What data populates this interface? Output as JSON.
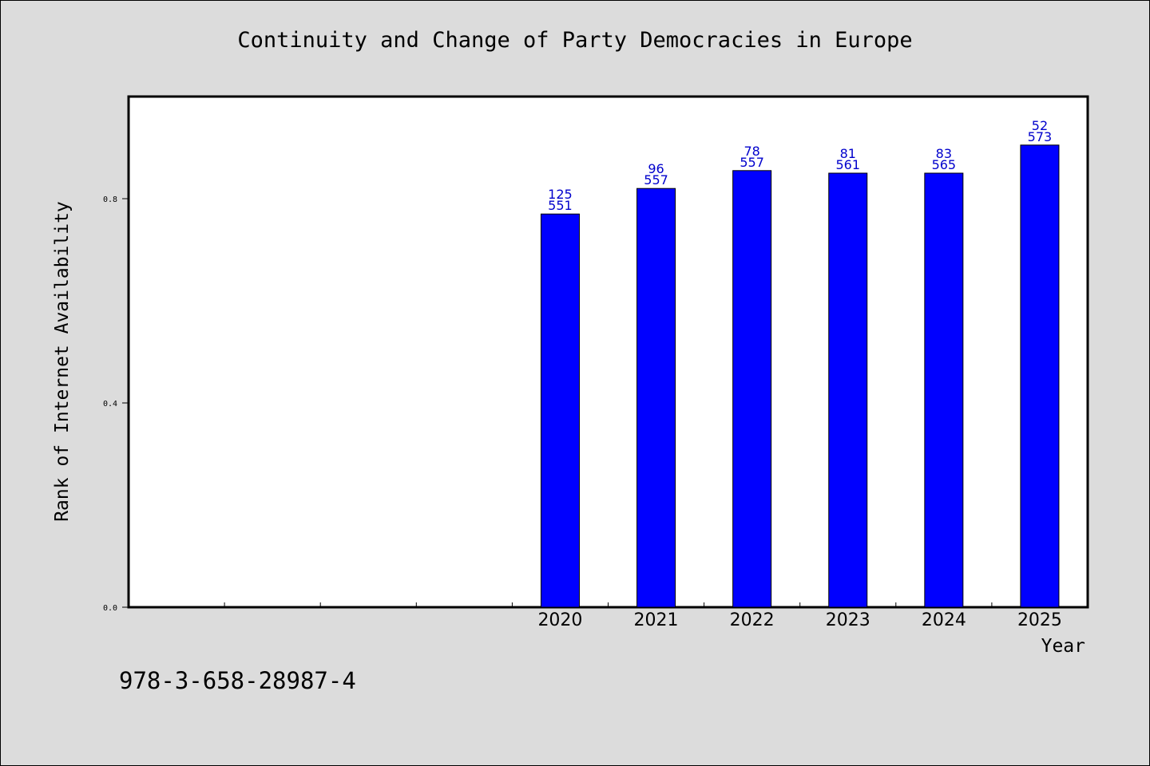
{
  "chart_data": {
    "type": "bar",
    "title": "Continuity and Change of Party Democracies in Europe",
    "xlabel": "Year",
    "ylabel": "Rank of Internet Availability",
    "categories": [
      "",
      "",
      "",
      "",
      "2020",
      "2021",
      "2022",
      "2023",
      "2024",
      "2025"
    ],
    "values": [
      null,
      null,
      null,
      null,
      0.77,
      0.82,
      0.855,
      0.85,
      0.85,
      0.905
    ],
    "bar_labels": [
      [
        "",
        ""
      ],
      [
        "",
        ""
      ],
      [
        "",
        ""
      ],
      [
        "",
        ""
      ],
      [
        "125",
        "551"
      ],
      [
        "96",
        "557"
      ],
      [
        "78",
        "557"
      ],
      [
        "81",
        "561"
      ],
      [
        "83",
        "565"
      ],
      [
        "52",
        "573"
      ]
    ],
    "ylim": [
      0,
      1.0
    ],
    "yticks": [
      0.0,
      0.4,
      0.8
    ],
    "ytick_labels": [
      "0.0",
      "0.4",
      "0.8"
    ],
    "grid": false,
    "legend": "none",
    "colors": {
      "bar_fill": "#0000ff",
      "bar_label": "#0000cc",
      "background": "#dcdcdc",
      "plot_background": "#ffffff"
    }
  },
  "footer": {
    "isbn": "978-3-658-28987-4"
  }
}
